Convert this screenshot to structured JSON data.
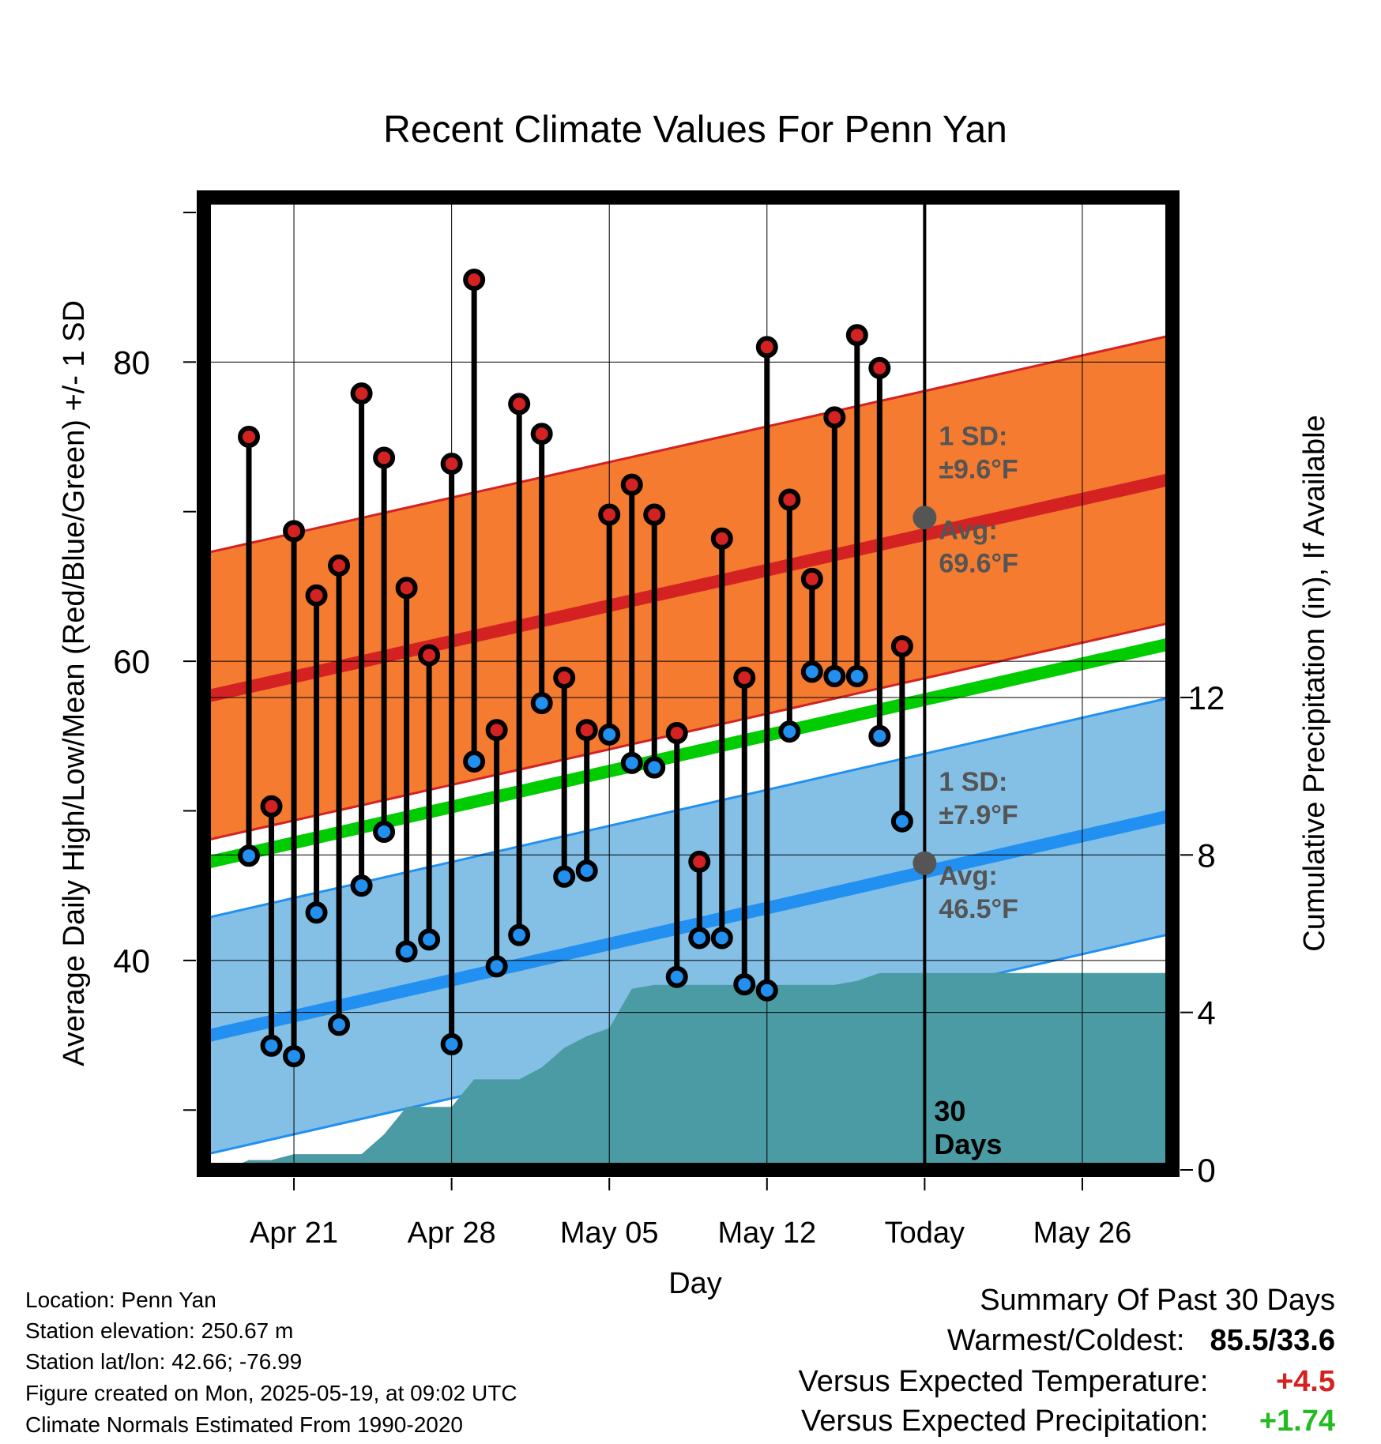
{
  "chart_data": {
    "type": "line",
    "title": "Recent Climate Values For Penn Yan",
    "xlabel": "Day",
    "ylabel": "Average Daily High/Low/Mean (Red/Blue/Green) +/- 1 SD",
    "y2label": "Cumulative Precipitation (in), If Available",
    "x_range": [
      "2025-04-17",
      "2025-05-30"
    ],
    "ylim": [
      26,
      91
    ],
    "y2lim": [
      0,
      24.7
    ],
    "yticks": [
      40,
      60,
      80
    ],
    "y2ticks": [
      0,
      4,
      8,
      12
    ],
    "xticks": [
      {
        "date": "2025-04-21",
        "label": "Apr 21"
      },
      {
        "date": "2025-04-28",
        "label": "Apr 28"
      },
      {
        "date": "2025-05-05",
        "label": "May 05"
      },
      {
        "date": "2025-05-12",
        "label": "May 12"
      },
      {
        "date": "2025-05-19",
        "label": "Today"
      },
      {
        "date": "2025-05-26",
        "label": "May 26"
      }
    ],
    "grid": true,
    "today": "2025-05-19",
    "window_label": "30\nDays",
    "normals": {
      "high_avg": {
        "start": 57.6,
        "end": 72.2
      },
      "high_sd": 9.6,
      "low_avg": {
        "start": 34.9,
        "end": 49.7
      },
      "low_sd": 7.9,
      "mean_avg": {
        "start": 46.5,
        "end": 61.2
      }
    },
    "annotations": {
      "high": {
        "sd_label": "1 SD:",
        "sd_value": "±9.6°F",
        "avg_label": "Avg:",
        "avg_value": "69.6°F",
        "avg_at_today": 69.6
      },
      "low": {
        "sd_label": "1 SD:",
        "sd_value": "±7.9°F",
        "avg_label": "Avg:",
        "avg_value": "46.5°F",
        "avg_at_today": 46.5
      }
    },
    "series": [
      {
        "name": "High",
        "x": [
          "2025-04-19",
          "2025-04-20",
          "2025-04-21",
          "2025-04-22",
          "2025-04-23",
          "2025-04-24",
          "2025-04-25",
          "2025-04-26",
          "2025-04-27",
          "2025-04-28",
          "2025-04-29",
          "2025-04-30",
          "2025-05-01",
          "2025-05-02",
          "2025-05-03",
          "2025-05-04",
          "2025-05-05",
          "2025-05-06",
          "2025-05-07",
          "2025-05-08",
          "2025-05-09",
          "2025-05-10",
          "2025-05-11",
          "2025-05-12",
          "2025-05-13",
          "2025-05-14",
          "2025-05-15",
          "2025-05-16",
          "2025-05-17",
          "2025-05-18"
        ],
        "values": [
          75.0,
          50.3,
          68.7,
          64.4,
          66.4,
          77.9,
          73.6,
          64.9,
          60.4,
          73.2,
          85.5,
          55.4,
          77.2,
          75.2,
          58.9,
          55.4,
          69.8,
          71.8,
          69.8,
          55.2,
          46.6,
          68.2,
          58.9,
          81.0,
          70.8,
          65.5,
          76.3,
          81.8,
          79.6,
          61.0
        ]
      },
      {
        "name": "Low",
        "x": [
          "2025-04-19",
          "2025-04-20",
          "2025-04-21",
          "2025-04-22",
          "2025-04-23",
          "2025-04-24",
          "2025-04-25",
          "2025-04-26",
          "2025-04-27",
          "2025-04-28",
          "2025-04-29",
          "2025-04-30",
          "2025-05-01",
          "2025-05-02",
          "2025-05-03",
          "2025-05-04",
          "2025-05-05",
          "2025-05-06",
          "2025-05-07",
          "2025-05-08",
          "2025-05-09",
          "2025-05-10",
          "2025-05-11",
          "2025-05-12",
          "2025-05-13",
          "2025-05-14",
          "2025-05-15",
          "2025-05-16",
          "2025-05-17",
          "2025-05-18"
        ],
        "values": [
          47.0,
          34.3,
          33.6,
          43.2,
          35.7,
          45.0,
          48.6,
          40.6,
          41.4,
          34.4,
          53.3,
          39.6,
          41.7,
          57.2,
          45.6,
          46.0,
          55.1,
          53.2,
          52.9,
          38.9,
          41.5,
          41.5,
          38.4,
          38.0,
          55.3,
          59.3,
          59.0,
          59.0,
          55.0,
          49.3
        ]
      },
      {
        "name": "Cumulative Precipitation",
        "x": [
          "2025-04-17",
          "2025-04-18",
          "2025-04-19",
          "2025-04-20",
          "2025-04-21",
          "2025-04-22",
          "2025-04-23",
          "2025-04-24",
          "2025-04-25",
          "2025-04-26",
          "2025-04-27",
          "2025-04-28",
          "2025-04-29",
          "2025-04-30",
          "2025-05-01",
          "2025-05-02",
          "2025-05-03",
          "2025-05-04",
          "2025-05-05",
          "2025-05-06",
          "2025-05-07",
          "2025-05-08",
          "2025-05-09",
          "2025-05-10",
          "2025-05-11",
          "2025-05-12",
          "2025-05-13",
          "2025-05-14",
          "2025-05-15",
          "2025-05-16",
          "2025-05-17",
          "2025-05-18",
          "2025-05-19",
          "2025-05-30"
        ],
        "values": [
          0.0,
          0.0,
          0.25,
          0.25,
          0.4,
          0.4,
          0.4,
          0.4,
          0.9,
          1.6,
          1.6,
          1.6,
          2.3,
          2.3,
          2.3,
          2.6,
          3.1,
          3.4,
          3.6,
          4.6,
          4.7,
          4.7,
          4.7,
          4.7,
          4.7,
          4.7,
          4.7,
          4.7,
          4.7,
          4.8,
          5.0,
          5.0,
          5.0,
          5.0
        ]
      }
    ],
    "colors": {
      "high_band": "#f47b30",
      "high_line": "#d42222",
      "low_band": "#84c0e6",
      "low_line": "#2290f0",
      "mean_line": "#00cc00",
      "precip": "#4a9ba3",
      "high_dot": "#d42222",
      "low_dot": "#2290f0",
      "annotation": "#555555"
    }
  },
  "footer": {
    "location": "Location: Penn Yan",
    "elevation": "Station elevation: 250.67 m",
    "latlon": "Station lat/lon: 42.66; -76.99",
    "created": "Figure created on Mon, 2025-05-19, at 09:02 UTC",
    "normals": "Climate Normals Estimated From 1990-2020"
  },
  "summary": {
    "title": "Summary Of Past 30 Days",
    "warm_cold_label": "Warmest/Coldest:",
    "warm_cold_value": "85.5/33.6",
    "temp_label": "Versus Expected Temperature:",
    "temp_value": "+4.5",
    "temp_color": "#d42222",
    "precip_label": "Versus Expected Precipitation:",
    "precip_value": "+1.74",
    "precip_color": "#22bb22"
  }
}
